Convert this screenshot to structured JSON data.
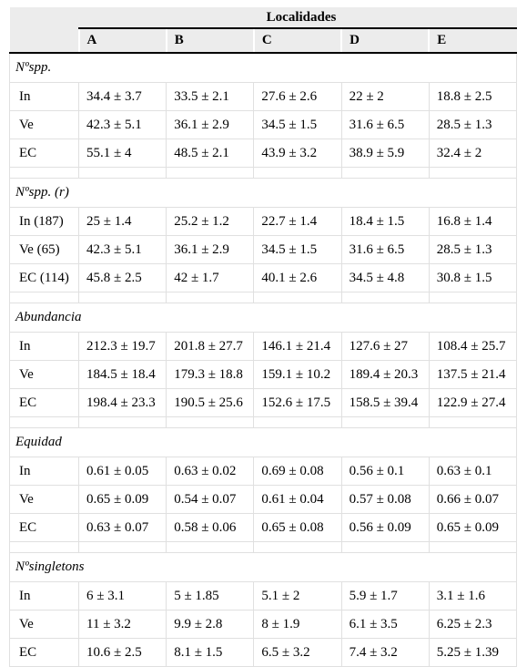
{
  "table": {
    "header": {
      "group": "Localidades",
      "columns": [
        "A",
        "B",
        "C",
        "D",
        "E"
      ]
    },
    "sections": [
      {
        "title": "Nºspp.",
        "rows": [
          {
            "label": "In",
            "cells": [
              "34.4 ± 3.7",
              "33.5 ± 2.1",
              "27.6 ± 2.6",
              "22 ± 2",
              "18.8 ± 2.5"
            ]
          },
          {
            "label": "Ve",
            "cells": [
              "42.3 ± 5.1",
              "36.1 ± 2.9",
              "34.5 ± 1.5",
              "31.6 ± 6.5",
              "28.5 ± 1.3"
            ]
          },
          {
            "label": "EC",
            "cells": [
              "55.1 ± 4",
              "48.5 ± 2.1",
              "43.9 ± 3.2",
              "38.9 ± 5.9",
              "32.4 ± 2"
            ]
          }
        ]
      },
      {
        "title": "Nºspp. (r)",
        "rows": [
          {
            "label": "In (187)",
            "cells": [
              "25 ± 1.4",
              "25.2 ± 1.2",
              "22.7 ± 1.4",
              "18.4 ± 1.5",
              "16.8 ± 1.4"
            ]
          },
          {
            "label": "Ve (65)",
            "cells": [
              "42.3 ± 5.1",
              "36.1 ± 2.9",
              "34.5 ± 1.5",
              "31.6 ± 6.5",
              "28.5 ± 1.3"
            ]
          },
          {
            "label": "EC (114)",
            "cells": [
              "45.8 ± 2.5",
              "42 ± 1.7",
              "40.1 ± 2.6",
              "34.5 ± 4.8",
              "30.8 ± 1.5"
            ]
          }
        ]
      },
      {
        "title": "Abundancia",
        "rows": [
          {
            "label": "In",
            "cells": [
              "212.3 ± 19.7",
              "201.8 ± 27.7",
              "146.1 ± 21.4",
              "127.6 ± 27",
              "108.4 ± 25.7"
            ]
          },
          {
            "label": "Ve",
            "cells": [
              "184.5 ± 18.4",
              "179.3 ± 18.8",
              "159.1 ± 10.2",
              "189.4 ± 20.3",
              "137.5 ± 21.4"
            ]
          },
          {
            "label": "EC",
            "cells": [
              "198.4 ± 23.3",
              "190.5 ± 25.6",
              "152.6 ± 17.5",
              "158.5 ± 39.4",
              "122.9 ± 27.4"
            ]
          }
        ]
      },
      {
        "title": "Equidad",
        "rows": [
          {
            "label": "In",
            "cells": [
              "0.61 ± 0.05",
              "0.63 ± 0.02",
              "0.69 ± 0.08",
              "0.56 ± 0.1",
              "0.63 ± 0.1"
            ]
          },
          {
            "label": "Ve",
            "cells": [
              "0.65 ± 0.09",
              "0.54 ± 0.07",
              "0.61 ± 0.04",
              "0.57 ± 0.08",
              "0.66 ± 0.07"
            ]
          },
          {
            "label": "EC",
            "cells": [
              "0.63 ± 0.07",
              "0.58 ± 0.06",
              "0.65 ± 0.08",
              "0.56 ± 0.09",
              "0.65 ± 0.09"
            ]
          }
        ]
      },
      {
        "title": "Nºsingletons",
        "rows": [
          {
            "label": "In",
            "cells": [
              "6 ± 3.1",
              "5 ± 1.85",
              "5.1 ± 2",
              "5.9 ± 1.7",
              "3.1 ± 1.6"
            ]
          },
          {
            "label": "Ve",
            "cells": [
              "11 ± 3.2",
              "9.9 ± 2.8",
              "8 ± 1.9",
              "6.1 ± 3.5",
              "6.25 ± 2.3"
            ]
          },
          {
            "label": "EC",
            "cells": [
              "10.6 ± 2.5",
              "8.1 ± 1.5",
              "6.5 ± 3.2",
              "7.4 ± 3.2",
              "5.25 ± 1.39"
            ]
          }
        ]
      }
    ]
  }
}
